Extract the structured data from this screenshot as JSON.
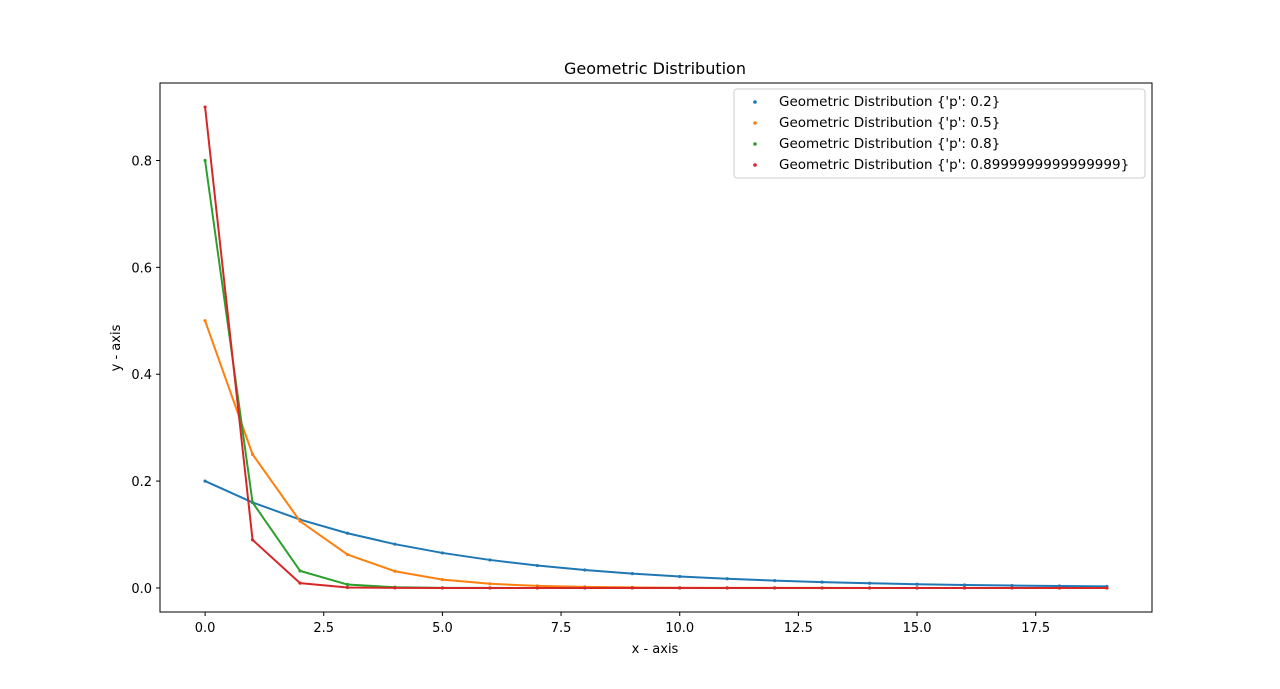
{
  "chart_data": {
    "type": "line",
    "title": "Geometric Distribution",
    "xlabel": "x - axis",
    "ylabel": "y - axis",
    "xlim": [
      -0.95,
      19.95
    ],
    "ylim": [
      -0.045,
      0.945
    ],
    "xticks": [
      0.0,
      2.5,
      5.0,
      7.5,
      10.0,
      12.5,
      15.0,
      17.5
    ],
    "xtick_labels": [
      "0.0",
      "2.5",
      "5.0",
      "7.5",
      "10.0",
      "12.5",
      "15.0",
      "17.5"
    ],
    "yticks": [
      0.0,
      0.2,
      0.4,
      0.6,
      0.8
    ],
    "ytick_labels": [
      "0.0",
      "0.2",
      "0.4",
      "0.6",
      "0.8"
    ],
    "grid": false,
    "legend_position": "top-right",
    "x": [
      0,
      1,
      2,
      3,
      4,
      5,
      6,
      7,
      8,
      9,
      10,
      11,
      12,
      13,
      14,
      15,
      16,
      17,
      18,
      19
    ],
    "series": [
      {
        "name": "Geometric Distribution {'p': 0.2}",
        "color": "#1f77b4",
        "values": [
          0.2,
          0.16,
          0.128,
          0.1024,
          0.08192,
          0.065536,
          0.052429,
          0.041943,
          0.033554,
          0.026844,
          0.021475,
          0.01718,
          0.013744,
          0.010995,
          0.008796,
          0.007037,
          0.005629,
          0.004504,
          0.003603,
          0.002882
        ]
      },
      {
        "name": "Geometric Distribution {'p': 0.5}",
        "color": "#ff7f0e",
        "values": [
          0.5,
          0.25,
          0.125,
          0.0625,
          0.03125,
          0.015625,
          0.0078125,
          0.0039063,
          0.0019531,
          0.00097656,
          0.00048828,
          0.00024414,
          0.00012207,
          6.1035e-05,
          3.0518e-05,
          1.5259e-05,
          7.6294e-06,
          3.8147e-06,
          1.9073e-06,
          9.5367e-07
        ]
      },
      {
        "name": "Geometric Distribution {'p': 0.8}",
        "color": "#2ca02c",
        "values": [
          0.8,
          0.16,
          0.032,
          0.0064,
          0.00128,
          0.000256,
          5.12e-05,
          1.024e-05,
          2.048e-06,
          4.096e-07,
          0.0,
          0.0,
          0.0,
          0.0,
          0.0,
          0.0,
          0.0,
          0.0,
          0.0,
          0.0
        ]
      },
      {
        "name": "Geometric Distribution {'p': 0.8999999999999999}",
        "color": "#d62728",
        "values": [
          0.9,
          0.09,
          0.009,
          0.0009,
          9e-05,
          9e-06,
          9e-07,
          9e-08,
          0.0,
          0.0,
          0.0,
          0.0,
          0.0,
          0.0,
          0.0,
          0.0,
          0.0,
          0.0,
          0.0,
          0.0
        ]
      }
    ]
  }
}
